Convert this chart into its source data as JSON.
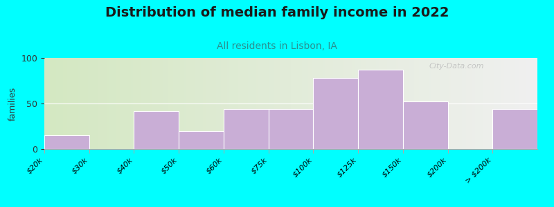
{
  "title": "Distribution of median family income in 2022",
  "subtitle": "All residents in Lisbon, IA",
  "ylabel": "families",
  "categories": [
    "$20k",
    "$30k",
    "$40k",
    "$50k",
    "$60k",
    "$75k",
    "$100k",
    "$125k",
    "$150k",
    "$200k",
    "> $200k"
  ],
  "values": [
    15,
    0,
    42,
    20,
    44,
    44,
    78,
    87,
    52,
    0,
    44
  ],
  "bar_color": "#c9aed6",
  "background_color": "#00ffff",
  "plot_bg_gradient_left": "#d4e8c2",
  "plot_bg_gradient_right": "#f0f0f0",
  "ylim": [
    0,
    100
  ],
  "yticks": [
    0,
    50,
    100
  ],
  "title_fontsize": 14,
  "subtitle_fontsize": 10,
  "ylabel_fontsize": 9,
  "watermark": "City-Data.com",
  "tick_fontsize": 8
}
